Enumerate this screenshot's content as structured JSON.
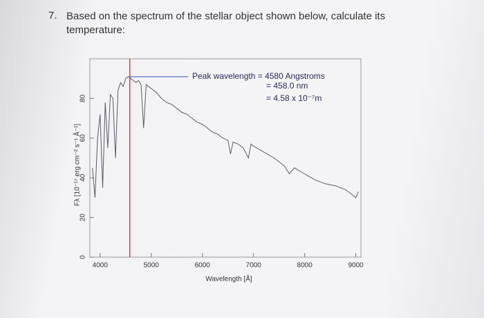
{
  "question": {
    "number": "7.",
    "text": "Based on the spectrum of the stellar object shown below, calculate its temperature:"
  },
  "chart_data": {
    "type": "line",
    "x": [
      3850,
      3900,
      3950,
      4000,
      4050,
      4100,
      4150,
      4200,
      4250,
      4300,
      4350,
      4400,
      4450,
      4500,
      4550,
      4600,
      4650,
      4700,
      4750,
      4800,
      4850,
      4900,
      5000,
      5100,
      5200,
      5300,
      5400,
      5500,
      5600,
      5700,
      5800,
      5900,
      6000,
      6100,
      6200,
      6300,
      6400,
      6500,
      6550,
      6600,
      6700,
      6800,
      6900,
      6950,
      7000,
      7200,
      7400,
      7600,
      7700,
      7800,
      8000,
      8200,
      8400,
      8600,
      8800,
      9000,
      9050
    ],
    "values": [
      45,
      30,
      60,
      72,
      35,
      78,
      55,
      82,
      80,
      50,
      84,
      88,
      86,
      90,
      91,
      90,
      89,
      88,
      89,
      87,
      65,
      87,
      85,
      83,
      80,
      78,
      77,
      75,
      73,
      72,
      70,
      68,
      67,
      65,
      63,
      62,
      60,
      59,
      52,
      58,
      57,
      55,
      50,
      57,
      56,
      53,
      50,
      46,
      42,
      45,
      42,
      39,
      37,
      36,
      34,
      30,
      33
    ],
    "color": "#5a5a6a",
    "xlim": [
      3800,
      9100
    ],
    "xticks": [
      4000,
      5000,
      6000,
      7000,
      8000,
      9000
    ],
    "ylim": [
      0,
      100
    ],
    "yticks": [
      0,
      20,
      40,
      60,
      80
    ],
    "xlabel": "Wavelength [Å]",
    "ylabel": "Fλ [10⁻¹⁷ erg cm⁻² s⁻¹ Å⁻¹]",
    "vline": {
      "x": 4580,
      "color": "#e03a3a"
    },
    "annotations": [
      "Peak wavelength = 4580 Angstroms",
      "= 458.0 nm",
      "= 4.58 x 10⁻⁷m"
    ]
  }
}
